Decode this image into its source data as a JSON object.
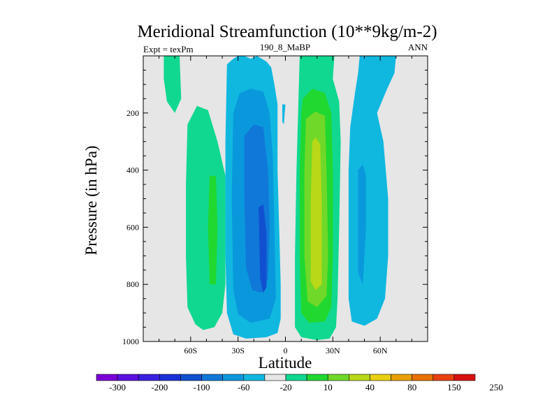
{
  "chart_data": {
    "type": "contour",
    "title": "Meridional Streamfunction (10**9kg/m-2)",
    "left_label": "Expt = texPm",
    "center_label": "190_8_MaBP",
    "right_label": "ANN",
    "xlabel": "Latitude",
    "ylabel": "Pressure (in hPa)",
    "xlim": [
      -90,
      90
    ],
    "ylim": [
      1000,
      0
    ],
    "x_ticks": [
      {
        "value": -60,
        "label": "60S"
      },
      {
        "value": -30,
        "label": "30S"
      },
      {
        "value": 0,
        "label": "0"
      },
      {
        "value": 30,
        "label": "30N"
      },
      {
        "value": 60,
        "label": "60N"
      }
    ],
    "y_ticks": [
      {
        "value": 200,
        "label": "200"
      },
      {
        "value": 400,
        "label": "400"
      },
      {
        "value": 600,
        "label": "600"
      },
      {
        "value": 800,
        "label": "800"
      },
      {
        "value": 1000,
        "label": "1000"
      }
    ],
    "background_color": "#e6e6e6",
    "colorbar": {
      "colors": [
        "#7a00d8",
        "#5a10e0",
        "#3a20e0",
        "#1a30d8",
        "#1050d0",
        "#1078d8",
        "#0a98dc",
        "#10b8e0",
        "#e6e6e6",
        "#10d890",
        "#20d830",
        "#70d828",
        "#b8d818",
        "#e8d010",
        "#e8a000",
        "#e87000",
        "#e84010",
        "#d81010"
      ],
      "labels": [
        "-300",
        "-200",
        "-100",
        "-60",
        "-20",
        "10",
        "40",
        "80",
        "150",
        "250"
      ]
    },
    "regions": [
      {
        "level": "pos1",
        "color": "#10d890",
        "points": [
          [
            -77,
            0
          ],
          [
            -67,
            0
          ],
          [
            -66,
            150
          ],
          [
            -70,
            200
          ],
          [
            -75,
            160
          ],
          [
            -77,
            80
          ]
        ]
      },
      {
        "level": "pos1",
        "color": "#10d890",
        "points": [
          [
            -62,
            240
          ],
          [
            -56,
            175
          ],
          [
            -49,
            190
          ],
          [
            -43,
            300
          ],
          [
            -38,
            420
          ],
          [
            -38,
            800
          ],
          [
            -40,
            900
          ],
          [
            -45,
            950
          ],
          [
            -52,
            960
          ],
          [
            -57,
            940
          ],
          [
            -62,
            880
          ],
          [
            -63,
            700
          ],
          [
            -63,
            450
          ]
        ]
      },
      {
        "level": "pos2",
        "color": "#20d830",
        "points": [
          [
            -48,
            420
          ],
          [
            -44,
            420
          ],
          [
            -43,
            600
          ],
          [
            -44,
            800
          ],
          [
            -48,
            800
          ],
          [
            -49,
            600
          ]
        ]
      },
      {
        "level": "neg1",
        "color": "#10b8e0",
        "points": [
          [
            -37,
            30
          ],
          [
            -33,
            10
          ],
          [
            -30,
            0
          ],
          [
            -26,
            0
          ],
          [
            -22,
            10
          ],
          [
            -18,
            0
          ],
          [
            -12,
            20
          ],
          [
            -9,
            40
          ],
          [
            -7,
            100
          ],
          [
            -5,
            170
          ],
          [
            -5,
            400
          ],
          [
            -4,
            600
          ],
          [
            -3,
            800
          ],
          [
            -3,
            920
          ],
          [
            -5,
            970
          ],
          [
            -12,
            985
          ],
          [
            -25,
            990
          ],
          [
            -33,
            975
          ],
          [
            -37,
            900
          ],
          [
            -38,
            700
          ],
          [
            -38,
            300
          ]
        ]
      },
      {
        "level": "neg2",
        "color": "#0a98dc",
        "points": [
          [
            -33,
            200
          ],
          [
            -29,
            130
          ],
          [
            -22,
            115
          ],
          [
            -14,
            125
          ],
          [
            -10,
            200
          ],
          [
            -8,
            350
          ],
          [
            -7,
            600
          ],
          [
            -6,
            850
          ],
          [
            -10,
            920
          ],
          [
            -22,
            935
          ],
          [
            -30,
            905
          ],
          [
            -33,
            820
          ],
          [
            -34,
            500
          ]
        ]
      },
      {
        "level": "neg3",
        "color": "#1078d8",
        "points": [
          [
            -26,
            280
          ],
          [
            -20,
            240
          ],
          [
            -14,
            250
          ],
          [
            -11,
            400
          ],
          [
            -10,
            600
          ],
          [
            -11,
            780
          ],
          [
            -15,
            830
          ],
          [
            -21,
            820
          ],
          [
            -25,
            740
          ],
          [
            -26,
            500
          ]
        ]
      },
      {
        "level": "neg4",
        "color": "#1050d0",
        "points": [
          [
            -17,
            530
          ],
          [
            -14,
            520
          ],
          [
            -12,
            620
          ],
          [
            -12,
            810
          ],
          [
            -14,
            830
          ],
          [
            -16,
            780
          ]
        ]
      },
      {
        "level": "neg1",
        "color": "#10b8e0",
        "points": [
          [
            -2,
            170
          ],
          [
            0,
            170
          ],
          [
            -1,
            240
          ],
          [
            -2,
            230
          ]
        ]
      },
      {
        "level": "pos1",
        "color": "#10d890",
        "points": [
          [
            9,
            0
          ],
          [
            31,
            0
          ],
          [
            30,
            80
          ],
          [
            34,
            160
          ],
          [
            35,
            300
          ],
          [
            34,
            600
          ],
          [
            33,
            850
          ],
          [
            32,
            950
          ],
          [
            28,
            990
          ],
          [
            20,
            995
          ],
          [
            10,
            985
          ],
          [
            6,
            950
          ],
          [
            6,
            700
          ],
          [
            7,
            400
          ],
          [
            8,
            200
          ]
        ]
      },
      {
        "level": "pos2",
        "color": "#20d830",
        "points": [
          [
            11,
            150
          ],
          [
            17,
            115
          ],
          [
            25,
            130
          ],
          [
            29,
            200
          ],
          [
            30,
            400
          ],
          [
            30,
            700
          ],
          [
            29,
            880
          ],
          [
            25,
            930
          ],
          [
            15,
            935
          ],
          [
            10,
            900
          ],
          [
            9,
            700
          ],
          [
            9,
            400
          ],
          [
            10,
            200
          ]
        ]
      },
      {
        "level": "pos3",
        "color": "#70d828",
        "points": [
          [
            13,
            220
          ],
          [
            19,
            195
          ],
          [
            25,
            210
          ],
          [
            26,
            400
          ],
          [
            27,
            700
          ],
          [
            26,
            840
          ],
          [
            20,
            880
          ],
          [
            14,
            860
          ],
          [
            12,
            700
          ],
          [
            12,
            400
          ]
        ]
      },
      {
        "level": "pos4",
        "color": "#b8d818",
        "points": [
          [
            17,
            300
          ],
          [
            19,
            285
          ],
          [
            22,
            310
          ],
          [
            23,
            500
          ],
          [
            23,
            800
          ],
          [
            19,
            820
          ],
          [
            16,
            790
          ],
          [
            16,
            500
          ]
        ]
      },
      {
        "level": "neg1",
        "color": "#10b8e0",
        "points": [
          [
            47,
            0
          ],
          [
            70,
            0
          ],
          [
            69,
            60
          ],
          [
            64,
            120
          ],
          [
            58,
            200
          ],
          [
            62,
            300
          ],
          [
            65,
            500
          ],
          [
            65,
            700
          ],
          [
            63,
            850
          ],
          [
            58,
            920
          ],
          [
            50,
            945
          ],
          [
            42,
            930
          ],
          [
            40,
            850
          ],
          [
            40,
            650
          ],
          [
            40,
            400
          ],
          [
            41,
            250
          ],
          [
            44,
            130
          ],
          [
            46,
            60
          ]
        ]
      },
      {
        "level": "neg2",
        "color": "#0a98dc",
        "points": [
          [
            46,
            400
          ],
          [
            49,
            380
          ],
          [
            51,
            420
          ],
          [
            51,
            600
          ],
          [
            49,
            800
          ],
          [
            46,
            760
          ],
          [
            46,
            600
          ]
        ]
      }
    ]
  }
}
